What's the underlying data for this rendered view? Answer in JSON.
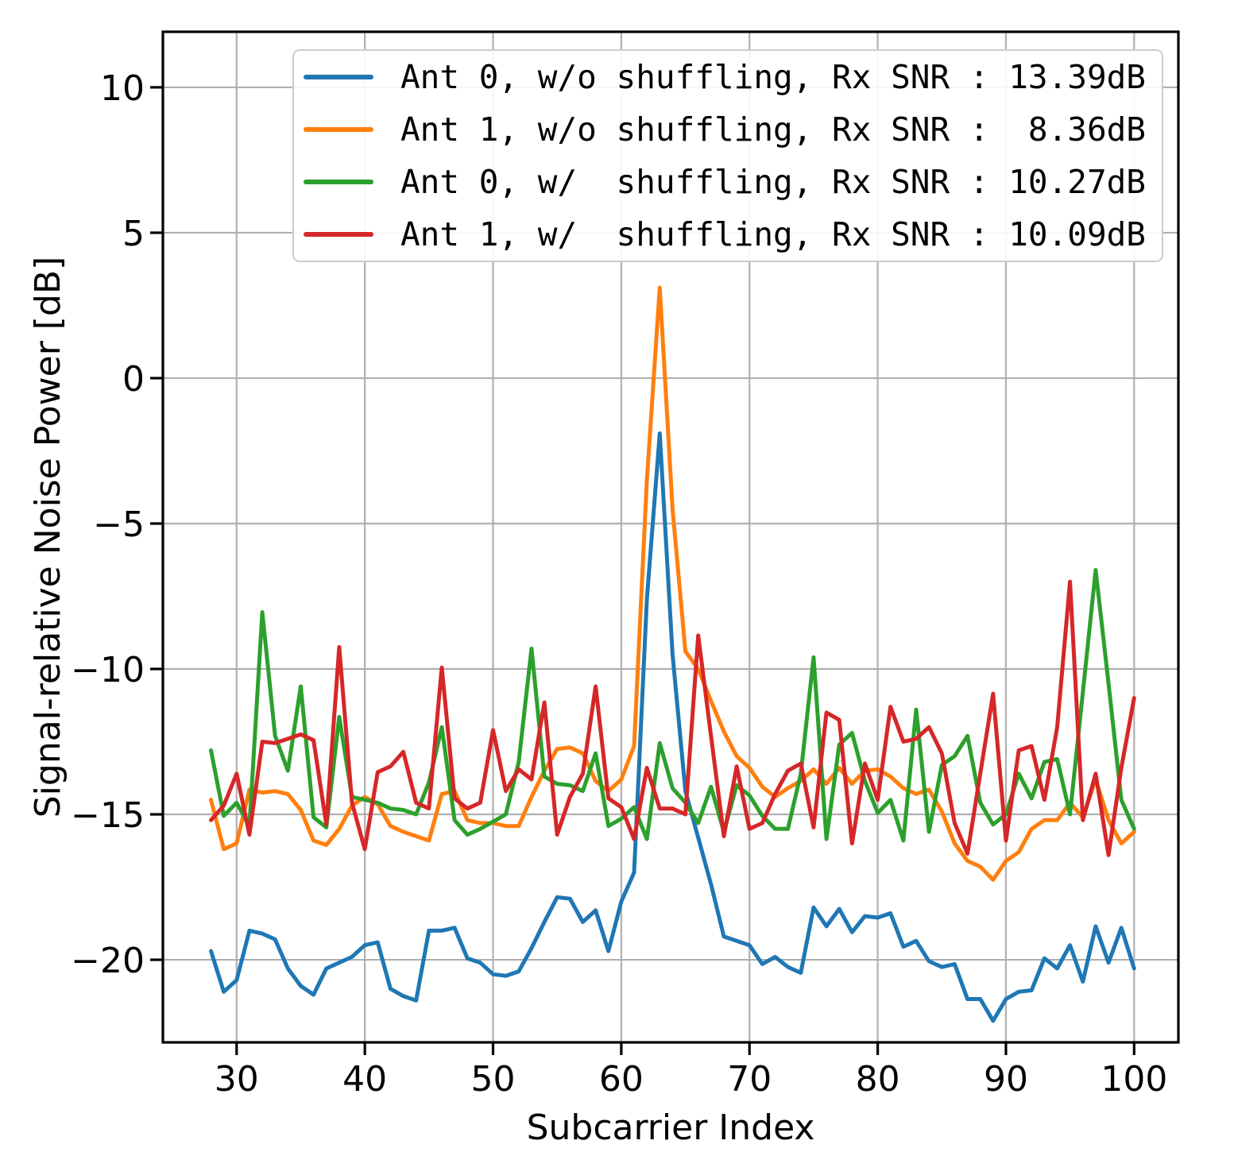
{
  "chart_data": {
    "type": "line",
    "title": "",
    "xlabel": "Subcarrier Index",
    "ylabel": "Signal-relative Noise Power [dB]",
    "xlim": [
      24.25,
      103.45
    ],
    "ylim": [
      -22.84,
      11.91
    ],
    "grid": true,
    "grid_color": "#b0b0b0",
    "legend_position": "upper center",
    "x_ticks": [
      30,
      40,
      50,
      60,
      70,
      80,
      90,
      100
    ],
    "x_tick_labels": [
      "30",
      "40",
      "50",
      "60",
      "70",
      "80",
      "90",
      "100"
    ],
    "y_ticks": [
      10,
      5,
      0,
      -5,
      -10,
      -15,
      -20
    ],
    "y_tick_labels": [
      "10",
      "5",
      "0",
      "−5",
      "−10",
      "−15",
      "−20"
    ],
    "x": [
      28,
      29,
      30,
      31,
      32,
      33,
      34,
      35,
      36,
      37,
      38,
      39,
      40,
      41,
      42,
      43,
      44,
      45,
      46,
      47,
      48,
      49,
      50,
      51,
      52,
      53,
      54,
      55,
      56,
      57,
      58,
      59,
      60,
      61,
      62,
      63,
      64,
      65,
      66,
      67,
      68,
      69,
      70,
      71,
      72,
      73,
      74,
      75,
      76,
      77,
      78,
      79,
      80,
      81,
      82,
      83,
      84,
      85,
      86,
      87,
      88,
      89,
      90,
      91,
      92,
      93,
      94,
      95,
      96,
      97,
      98,
      99,
      100
    ],
    "series": [
      {
        "name": "Ant 0, w/o shuffling, Rx SNR : 13.39dB",
        "color": "#1f77b4",
        "values": [
          -19.7,
          -21.1,
          -20.7,
          -19.0,
          -19.1,
          -19.3,
          -20.3,
          -20.9,
          -21.2,
          -20.3,
          -20.1,
          -19.9,
          -19.5,
          -19.4,
          -21.0,
          -21.25,
          -21.4,
          -19.0,
          -19.0,
          -18.9,
          -19.95,
          -20.1,
          -20.5,
          -20.55,
          -20.4,
          -19.6,
          -18.7,
          -17.85,
          -17.9,
          -18.7,
          -18.3,
          -19.7,
          -18.0,
          -17.0,
          -7.6,
          -1.9,
          -9.5,
          -14.2,
          -15.8,
          -17.4,
          -19.2,
          -19.35,
          -19.5,
          -20.15,
          -19.9,
          -20.25,
          -20.45,
          -18.2,
          -18.85,
          -18.25,
          -19.05,
          -18.5,
          -18.55,
          -18.4,
          -19.55,
          -19.35,
          -20.05,
          -20.25,
          -20.15,
          -21.35,
          -21.35,
          -22.1,
          -21.35,
          -21.1,
          -21.05,
          -19.95,
          -20.3,
          -19.5,
          -20.75,
          -18.85,
          -20.1,
          -18.9,
          -20.3
        ]
      },
      {
        "name": "Ant 1, w/o shuffling, Rx SNR :  8.36dB",
        "color": "#ff7f0e",
        "values": [
          -14.5,
          -16.2,
          -16.0,
          -14.15,
          -14.25,
          -14.2,
          -14.3,
          -14.85,
          -15.9,
          -16.05,
          -15.5,
          -14.7,
          -14.4,
          -14.65,
          -15.4,
          -15.6,
          -15.75,
          -15.9,
          -14.3,
          -14.2,
          -15.2,
          -15.3,
          -15.3,
          -15.4,
          -15.4,
          -14.4,
          -13.5,
          -12.75,
          -12.7,
          -12.9,
          -13.85,
          -14.2,
          -13.8,
          -12.65,
          -3.5,
          3.11,
          -4.5,
          -9.4,
          -10.0,
          -11.1,
          -12.15,
          -13.0,
          -13.4,
          -14.05,
          -14.4,
          -14.1,
          -13.85,
          -13.45,
          -13.95,
          -13.4,
          -13.95,
          -13.5,
          -13.45,
          -13.7,
          -14.1,
          -14.3,
          -14.15,
          -14.9,
          -16.0,
          -16.6,
          -16.8,
          -17.25,
          -16.6,
          -16.3,
          -15.5,
          -15.2,
          -15.2,
          -14.6,
          -15.1,
          -13.8,
          -15.2,
          -16.0,
          -15.6
        ]
      },
      {
        "name": "Ant 0, w/  shuffling, Rx SNR : 10.27dB",
        "color": "#2ca02c",
        "values": [
          -12.8,
          -15.05,
          -14.6,
          -15.4,
          -8.05,
          -12.3,
          -13.5,
          -10.6,
          -15.1,
          -15.45,
          -11.65,
          -14.4,
          -14.5,
          -14.6,
          -14.8,
          -14.85,
          -15.0,
          -13.9,
          -12.0,
          -15.2,
          -15.7,
          -15.5,
          -15.25,
          -15.0,
          -13.2,
          -9.3,
          -13.7,
          -13.95,
          -14.0,
          -14.2,
          -12.9,
          -15.4,
          -15.15,
          -14.75,
          -15.85,
          -12.55,
          -14.1,
          -14.6,
          -15.3,
          -14.05,
          -15.6,
          -14.0,
          -14.35,
          -15.05,
          -15.5,
          -15.5,
          -13.6,
          -9.6,
          -15.85,
          -12.6,
          -12.2,
          -13.85,
          -14.95,
          -14.5,
          -15.9,
          -11.4,
          -15.6,
          -13.3,
          -13.0,
          -12.3,
          -14.6,
          -15.35,
          -15.0,
          -13.6,
          -14.45,
          -13.2,
          -13.1,
          -15.0,
          -10.8,
          -6.6,
          -10.5,
          -14.5,
          -15.5
        ]
      },
      {
        "name": "Ant 1, w/  shuffling, Rx SNR : 10.09dB",
        "color": "#d62728",
        "values": [
          -15.2,
          -14.7,
          -13.6,
          -15.7,
          -12.5,
          -12.55,
          -12.4,
          -12.25,
          -12.45,
          -15.35,
          -9.25,
          -14.6,
          -16.2,
          -13.55,
          -13.35,
          -12.85,
          -14.6,
          -14.8,
          -9.95,
          -14.45,
          -14.8,
          -14.6,
          -12.1,
          -14.2,
          -13.45,
          -13.8,
          -11.15,
          -15.7,
          -14.4,
          -13.6,
          -10.6,
          -14.45,
          -14.75,
          -15.85,
          -13.4,
          -14.8,
          -14.8,
          -15.0,
          -8.85,
          -12.3,
          -15.75,
          -13.35,
          -15.5,
          -15.3,
          -14.3,
          -13.5,
          -13.25,
          -15.45,
          -11.5,
          -11.75,
          -16.0,
          -13.25,
          -14.5,
          -11.3,
          -12.5,
          -12.4,
          -12.0,
          -12.9,
          -15.3,
          -16.35,
          -13.6,
          -10.85,
          -15.9,
          -12.8,
          -12.65,
          -14.5,
          -12.0,
          -7.0,
          -15.2,
          -13.6,
          -16.4,
          -13.4,
          -11.0
        ]
      }
    ]
  },
  "legend": {
    "entries": [
      {
        "label": "Ant 0, w/o shuffling, Rx SNR : 13.39dB",
        "color": "#1f77b4"
      },
      {
        "label": "Ant 1, w/o shuffling, Rx SNR :  8.36dB",
        "color": "#ff7f0e"
      },
      {
        "label": "Ant 0, w/  shuffling, Rx SNR : 10.27dB",
        "color": "#2ca02c"
      },
      {
        "label": "Ant 1, w/  shuffling, Rx SNR : 10.09dB",
        "color": "#d62728"
      }
    ]
  },
  "style": {
    "axis_color": "#000000",
    "tick_label_color": "#000000",
    "background": "#ffffff",
    "line_width": 5
  }
}
